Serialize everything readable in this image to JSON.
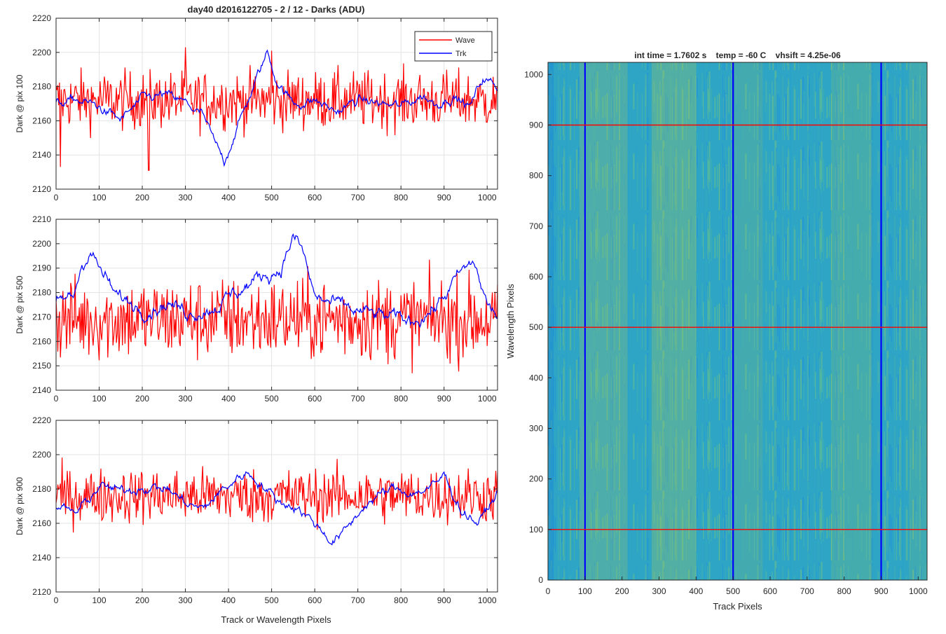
{
  "figure": {
    "title": "day40 d2016122705 - 2 / 12 - Darks (ADU)",
    "xlabel": "Track or Wavelength Pixels"
  },
  "chart_data": [
    {
      "type": "line",
      "ylabel": "Dark @ pix 100",
      "xlim": [
        0,
        1024
      ],
      "ylim": [
        2120,
        2220
      ],
      "xticks": [
        0,
        100,
        200,
        300,
        400,
        500,
        600,
        700,
        800,
        900,
        1000
      ],
      "yticks": [
        2120,
        2140,
        2160,
        2180,
        2200,
        2220
      ],
      "grid": true,
      "legend": {
        "placement": "top-right",
        "entries": [
          "Wave",
          "Trk"
        ]
      },
      "series": [
        {
          "name": "Wave",
          "color": "#ff0000",
          "mean": 2172,
          "noise": 8.5,
          "smooth": 0.0,
          "features": [
            [
              10,
              2133
            ],
            [
              215,
              2131
            ],
            [
              500,
              2201
            ],
            [
              300,
              2203
            ]
          ]
        },
        {
          "name": "Trk",
          "color": "#0000ff",
          "mean": 2171,
          "noise": 3,
          "smooth": 0.85,
          "anchors": [
            [
              0,
              2170
            ],
            [
              50,
              2172
            ],
            [
              100,
              2168
            ],
            [
              150,
              2160
            ],
            [
              200,
              2172
            ],
            [
              250,
              2175
            ],
            [
              300,
              2170
            ],
            [
              340,
              2163
            ],
            [
              370,
              2145
            ],
            [
              390,
              2136
            ],
            [
              410,
              2150
            ],
            [
              450,
              2175
            ],
            [
              490,
              2200
            ],
            [
              510,
              2185
            ],
            [
              550,
              2170
            ],
            [
              600,
              2172
            ],
            [
              650,
              2165
            ],
            [
              700,
              2172
            ],
            [
              750,
              2170
            ],
            [
              800,
              2168
            ],
            [
              850,
              2175
            ],
            [
              880,
              2170
            ],
            [
              920,
              2175
            ],
            [
              960,
              2168
            ],
            [
              990,
              2185
            ],
            [
              1024,
              2180
            ]
          ]
        }
      ]
    },
    {
      "type": "line",
      "ylabel": "Dark @ pix 500",
      "xlim": [
        0,
        1024
      ],
      "ylim": [
        2140,
        2210
      ],
      "xticks": [
        0,
        100,
        200,
        300,
        400,
        500,
        600,
        700,
        800,
        900,
        1000
      ],
      "yticks": [
        2140,
        2150,
        2160,
        2170,
        2180,
        2190,
        2200,
        2210
      ],
      "grid": true,
      "series": [
        {
          "name": "Wave",
          "color": "#ff0000",
          "mean": 2169,
          "noise": 8.5,
          "smooth": 0.0
        },
        {
          "name": "Trk",
          "color": "#0000ff",
          "mean": 2174,
          "noise": 3,
          "smooth": 0.85,
          "anchors": [
            [
              0,
              2176
            ],
            [
              40,
              2178
            ],
            [
              60,
              2192
            ],
            [
              80,
              2198
            ],
            [
              100,
              2190
            ],
            [
              140,
              2178
            ],
            [
              200,
              2174
            ],
            [
              260,
              2176
            ],
            [
              300,
              2172
            ],
            [
              360,
              2174
            ],
            [
              420,
              2180
            ],
            [
              460,
              2185
            ],
            [
              520,
              2190
            ],
            [
              550,
              2203
            ],
            [
              570,
              2198
            ],
            [
              600,
              2178
            ],
            [
              660,
              2174
            ],
            [
              700,
              2172
            ],
            [
              760,
              2170
            ],
            [
              820,
              2168
            ],
            [
              880,
              2174
            ],
            [
              940,
              2188
            ],
            [
              970,
              2192
            ],
            [
              1000,
              2175
            ],
            [
              1024,
              2170
            ]
          ]
        }
      ]
    },
    {
      "type": "line",
      "ylabel": "Dark @ pix 900",
      "xlim": [
        0,
        1024
      ],
      "ylim": [
        2120,
        2220
      ],
      "xticks": [
        0,
        100,
        200,
        300,
        400,
        500,
        600,
        700,
        800,
        900,
        1000
      ],
      "yticks": [
        2120,
        2140,
        2160,
        2180,
        2200,
        2220
      ],
      "grid": true,
      "series": [
        {
          "name": "Wave",
          "color": "#ff0000",
          "mean": 2176,
          "noise": 8,
          "smooth": 0.0
        },
        {
          "name": "Trk",
          "color": "#0000ff",
          "mean": 2173,
          "noise": 3,
          "smooth": 0.85,
          "anchors": [
            [
              0,
              2170
            ],
            [
              50,
              2166
            ],
            [
              100,
              2182
            ],
            [
              150,
              2178
            ],
            [
              200,
              2182
            ],
            [
              260,
              2180
            ],
            [
              300,
              2172
            ],
            [
              340,
              2168
            ],
            [
              380,
              2178
            ],
            [
              440,
              2190
            ],
            [
              470,
              2185
            ],
            [
              520,
              2172
            ],
            [
              560,
              2170
            ],
            [
              600,
              2160
            ],
            [
              640,
              2150
            ],
            [
              670,
              2155
            ],
            [
              720,
              2172
            ],
            [
              780,
              2180
            ],
            [
              830,
              2178
            ],
            [
              880,
              2182
            ],
            [
              900,
              2188
            ],
            [
              940,
              2168
            ],
            [
              980,
              2160
            ],
            [
              1024,
              2178
            ]
          ]
        }
      ]
    },
    {
      "type": "heatmap",
      "title": "int time = 1.7602 s    temp = -60 C    vhsift = 4.25e-06",
      "xlabel": "Track Pixels",
      "ylabel": "Wavelength Pixels",
      "xlim": [
        0,
        1024
      ],
      "ylim": [
        0,
        1024
      ],
      "xticks": [
        0,
        100,
        200,
        300,
        400,
        500,
        600,
        700,
        800,
        900,
        1000
      ],
      "yticks": [
        0,
        100,
        200,
        300,
        400,
        500,
        600,
        700,
        800,
        900,
        1000
      ],
      "vlines": [
        100,
        500,
        900
      ],
      "hlines": [
        100,
        500,
        900
      ],
      "vline_color": "#0000ff",
      "hline_color": "#ff0000",
      "colormap": "parula"
    }
  ]
}
